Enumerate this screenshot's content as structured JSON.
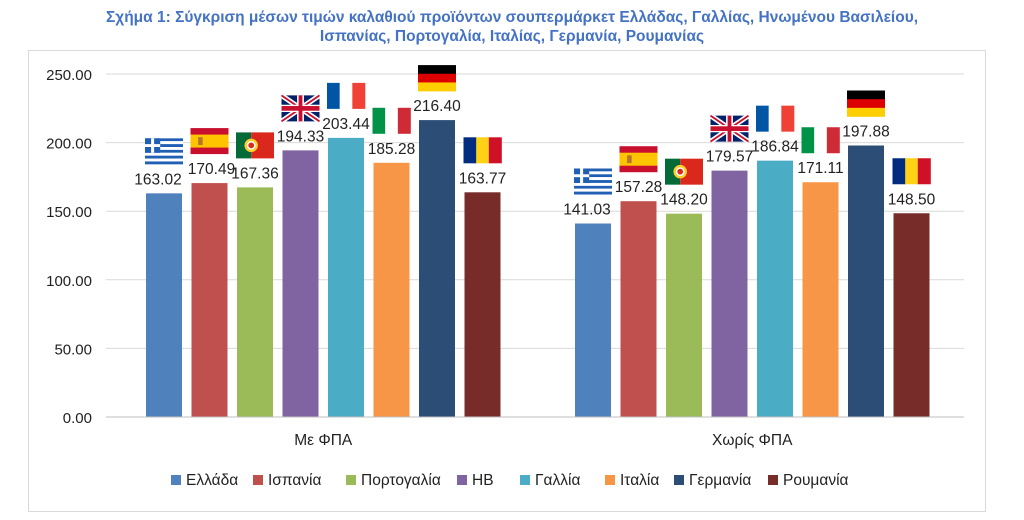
{
  "title_line1": "Σχήμα 1: Σύγκριση μέσων τιμών καλαθιού προϊόντων σουπερμάρκετ Ελλάδας, Γαλλίας, Ηνωμένου Βασιλείου,",
  "title_line2": "Ισπανίας, Πορτογαλία, Ιταλίας, Γερμανία, Ρουμανίας",
  "chart_data": {
    "type": "bar",
    "title": "Σχήμα 1: Σύγκριση μέσων τιμών καλαθιού προϊόντων σουπερμάρκετ Ελλάδας, Γαλλίας, Ηνωμένου Βασιλείου, Ισπανίας, Πορτογαλία, Ιταλίας, Γερμανία, Ρουμανίας",
    "categories": [
      "Με ΦΠΑ",
      "Χωρίς ΦΠΑ"
    ],
    "ylim": [
      0,
      250
    ],
    "yticks": [
      "0.00",
      "50.00",
      "100.00",
      "150.00",
      "200.00",
      "250.00"
    ],
    "grid": true,
    "legend_position": "bottom",
    "series": [
      {
        "name": "Ελλάδα",
        "color": "#4f81bd",
        "flag": "greece-flag",
        "values": [
          163.02,
          141.03
        ],
        "labels": [
          "163.02",
          "141.03"
        ]
      },
      {
        "name": "Ισπανία",
        "color": "#c0504d",
        "flag": "spain-flag",
        "values": [
          170.49,
          157.28
        ],
        "labels": [
          "170.49",
          "157.28"
        ]
      },
      {
        "name": "Πορτογαλία",
        "color": "#9bbb59",
        "flag": "portugal-flag",
        "values": [
          167.36,
          148.2
        ],
        "labels": [
          "167.36",
          "148.20"
        ]
      },
      {
        "name": "ΗΒ",
        "color": "#8064a2",
        "flag": "uk-flag",
        "values": [
          194.33,
          179.57
        ],
        "labels": [
          "194.33",
          "179.57"
        ]
      },
      {
        "name": "Γαλλία",
        "color": "#4bacc6",
        "flag": "france-flag",
        "values": [
          203.44,
          186.84
        ],
        "labels": [
          "203.44",
          "186.84"
        ]
      },
      {
        "name": "Ιταλία",
        "color": "#f79646",
        "flag": "italy-flag",
        "values": [
          185.28,
          171.11
        ],
        "labels": [
          "185.28",
          "171.11"
        ]
      },
      {
        "name": "Γερμανία",
        "color": "#2c4d75",
        "flag": "germany-flag",
        "values": [
          216.4,
          197.88
        ],
        "labels": [
          "216.40",
          "197.88"
        ]
      },
      {
        "name": "Ρουμανία",
        "color": "#772c2a",
        "flag": "romania-flag",
        "values": [
          163.77,
          148.5
        ],
        "labels": [
          "163.77",
          "148.50"
        ]
      }
    ]
  }
}
